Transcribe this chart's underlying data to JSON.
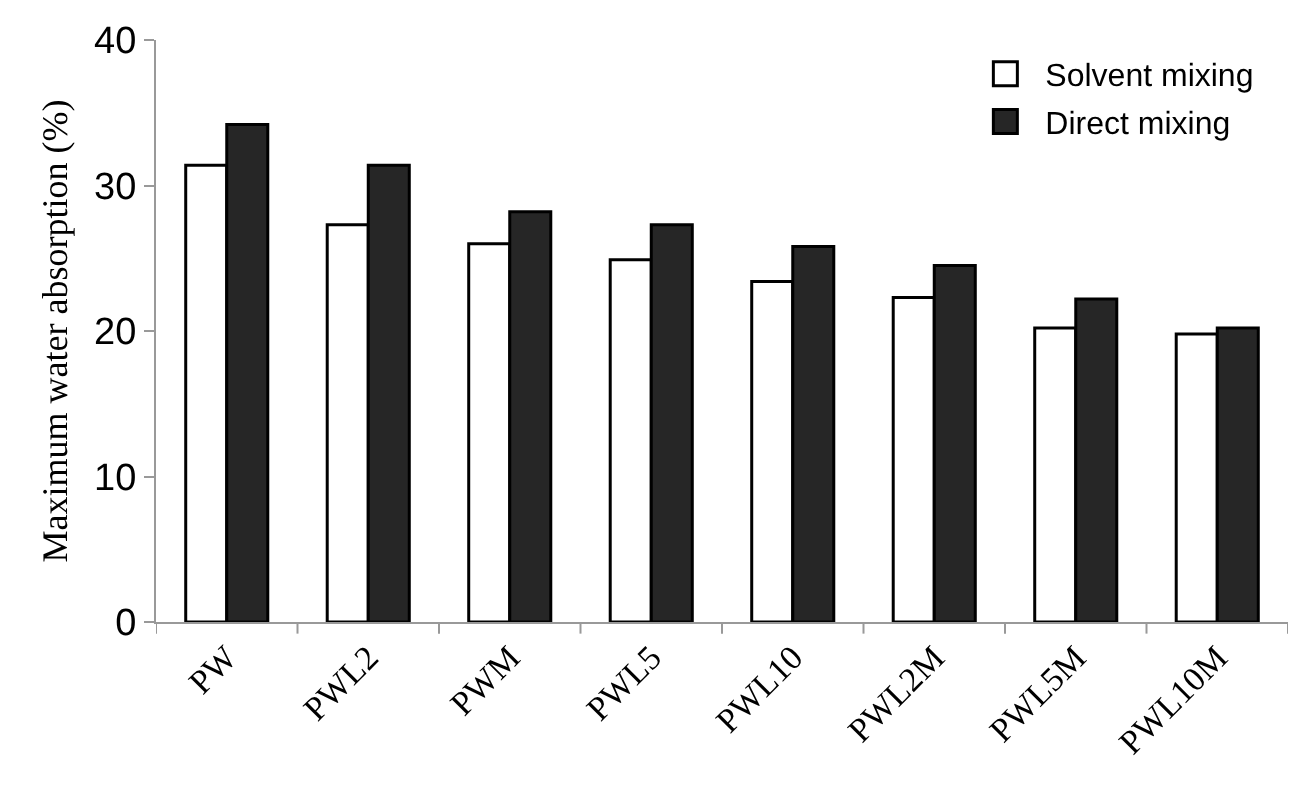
{
  "chart_data": {
    "type": "bar",
    "ylabel": "Maximum water absorption (%)",
    "categories": [
      "PW",
      "PWL2",
      "PWM",
      "PWL5",
      "PWL10",
      "PWL2M",
      "PWL5M",
      "PWL10M"
    ],
    "series": [
      {
        "name": "Solvent mixing",
        "color": "#ffffff",
        "values": [
          31.4,
          27.3,
          26.0,
          24.9,
          23.4,
          22.3,
          20.2,
          19.8
        ]
      },
      {
        "name": "Direct mixing",
        "color": "#262626",
        "values": [
          34.2,
          31.4,
          28.2,
          27.3,
          25.8,
          24.5,
          22.2,
          20.2
        ]
      }
    ],
    "ylim": [
      0,
      40
    ],
    "yticks": [
      0,
      10,
      20,
      30,
      40
    ],
    "grid": false,
    "legend": "top right"
  }
}
